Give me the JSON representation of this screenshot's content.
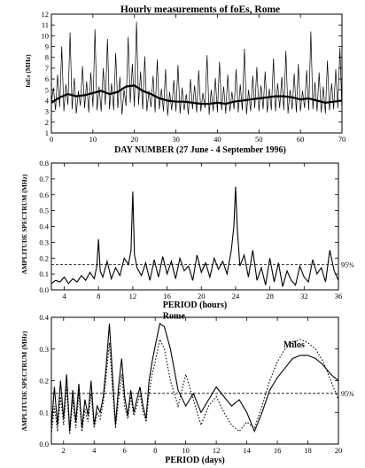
{
  "chart_data": [
    {
      "type": "line",
      "title": "Hourly measurements of foEs,  Rome",
      "xlabel": "DAY  NUMBER  (27 June - 4 September 1996)",
      "ylabel": "foEs  (MHz)",
      "xlim": [
        0,
        70
      ],
      "ylim": [
        1,
        12
      ],
      "xticks": [
        0,
        10,
        20,
        30,
        40,
        50,
        60,
        70
      ],
      "yticks": [
        1,
        2,
        3,
        4,
        5,
        6,
        7,
        8,
        9,
        10,
        11,
        12
      ],
      "series": [
        {
          "style": "hourly",
          "x": [
            0.0,
            0.5,
            1.0,
            1.5,
            2.0,
            2.5,
            3.0,
            3.5,
            4.0,
            4.5,
            5.0,
            5.5,
            6.0,
            6.5,
            7.0,
            7.5,
            8.0,
            8.5,
            9.0,
            9.5,
            10.0,
            10.5,
            11.0,
            11.5,
            12.0,
            12.5,
            13.0,
            13.5,
            14.0,
            14.5,
            15.0,
            15.5,
            16.0,
            16.5,
            17.0,
            17.5,
            18.0,
            18.5,
            19.0,
            19.5,
            20.0,
            20.5,
            21.0,
            21.5,
            22.0,
            22.5,
            23.0,
            23.5,
            24.0,
            24.5,
            25.0,
            25.5,
            26.0,
            26.5,
            27.0,
            27.5,
            28.0,
            28.5,
            29.0,
            29.5,
            30.0,
            30.5,
            31.0,
            31.5,
            32.0,
            32.5,
            33.0,
            33.5,
            34.0,
            34.5,
            35.0,
            35.5,
            36.0,
            36.5,
            37.0,
            37.5,
            38.0,
            38.5,
            39.0,
            39.5,
            40.0,
            40.5,
            41.0,
            41.5,
            42.0,
            42.5,
            43.0,
            43.5,
            44.0,
            44.5,
            45.0,
            45.5,
            46.0,
            46.5,
            47.0,
            47.5,
            48.0,
            48.5,
            49.0,
            49.5,
            50.0,
            50.5,
            51.0,
            51.5,
            52.0,
            52.5,
            53.0,
            53.5,
            54.0,
            54.5,
            55.0,
            55.5,
            56.0,
            56.5,
            57.0,
            57.5,
            58.0,
            58.5,
            59.0,
            59.5,
            60.0,
            60.5,
            61.0,
            61.5,
            62.0,
            62.5,
            63.0,
            63.5,
            64.0,
            64.5,
            65.0,
            65.5,
            66.0,
            66.5,
            67.0,
            67.5,
            68.0,
            68.5,
            69.0,
            69.5,
            70.0
          ],
          "y": [
            3.8,
            5.2,
            3.1,
            6.4,
            3.4,
            9.0,
            3.0,
            5.5,
            3.6,
            10.3,
            3.2,
            6.1,
            2.8,
            4.9,
            3.5,
            7.2,
            3.3,
            5.8,
            2.9,
            6.6,
            3.4,
            10.6,
            3.1,
            5.3,
            3.0,
            7.0,
            3.6,
            9.7,
            3.2,
            5.6,
            3.1,
            8.4,
            3.3,
            6.2,
            2.7,
            5.0,
            3.5,
            9.9,
            3.8,
            7.4,
            3.4,
            11.3,
            3.6,
            6.7,
            3.2,
            8.1,
            3.0,
            4.9,
            3.4,
            6.3,
            2.9,
            7.8,
            3.2,
            5.1,
            3.0,
            6.9,
            2.6,
            4.8,
            3.1,
            5.9,
            3.0,
            7.3,
            2.8,
            5.2,
            3.1,
            4.6,
            2.7,
            6.0,
            3.2,
            5.4,
            2.9,
            6.8,
            3.0,
            4.7,
            3.3,
            8.2,
            2.7,
            5.0,
            3.0,
            6.1,
            2.9,
            7.6,
            3.1,
            5.3,
            2.8,
            6.4,
            3.0,
            4.8,
            3.2,
            6.9,
            2.9,
            5.5,
            3.1,
            8.8,
            2.7,
            5.0,
            3.0,
            6.3,
            3.3,
            7.1,
            3.0,
            5.4,
            3.2,
            6.7,
            2.9,
            5.1,
            3.1,
            7.9,
            3.0,
            5.6,
            3.3,
            6.2,
            3.1,
            8.6,
            2.8,
            5.0,
            3.2,
            6.5,
            2.9,
            7.4,
            3.0,
            4.9,
            3.3,
            6.8,
            3.1,
            10.4,
            3.2,
            5.7,
            3.0,
            6.6,
            2.9,
            5.3,
            2.8,
            7.7,
            3.1,
            5.6,
            3.2,
            6.9,
            3.3,
            8.9,
            3.0
          ]
        },
        {
          "style": "smoothed",
          "x": [
            0,
            2,
            4,
            6,
            8,
            10,
            12,
            14,
            16,
            18,
            20,
            22,
            24,
            26,
            28,
            30,
            32,
            34,
            36,
            38,
            40,
            42,
            44,
            46,
            48,
            50,
            52,
            54,
            56,
            58,
            60,
            62,
            64,
            66,
            68,
            70
          ],
          "y": [
            3.8,
            4.3,
            4.6,
            4.4,
            4.5,
            4.7,
            4.9,
            4.6,
            4.8,
            5.3,
            5.4,
            4.9,
            4.6,
            4.2,
            4.0,
            3.9,
            3.9,
            3.8,
            3.7,
            3.7,
            3.8,
            3.7,
            3.9,
            4.0,
            4.1,
            4.2,
            4.3,
            4.4,
            4.4,
            4.3,
            4.1,
            4.2,
            4.0,
            3.8,
            3.9,
            4.0
          ]
        }
      ]
    },
    {
      "type": "line",
      "xlabel": "PERIOD  (hours)",
      "ylabel": "AMPLITUDE  SPECTRUM  (MHz)",
      "xlim": [
        2.5,
        36
      ],
      "ylim": [
        0,
        0.8
      ],
      "xticks": [
        4,
        8,
        12,
        16,
        20,
        24,
        28,
        32,
        36
      ],
      "yticks": [
        0.0,
        0.1,
        0.2,
        0.3,
        0.4,
        0.5,
        0.6,
        0.7,
        0.8
      ],
      "significance": {
        "value": 0.16,
        "label": "95%"
      },
      "series": [
        {
          "x": [
            2.5,
            3.0,
            3.5,
            4.0,
            4.5,
            5.0,
            5.5,
            6.0,
            6.5,
            7.0,
            7.5,
            7.8,
            8.0,
            8.2,
            8.5,
            9.0,
            9.5,
            10.0,
            10.5,
            11.0,
            11.5,
            11.8,
            12.0,
            12.2,
            12.5,
            13.0,
            13.5,
            14.0,
            14.5,
            15.0,
            15.5,
            16.0,
            16.5,
            17.0,
            17.5,
            18.0,
            18.5,
            19.0,
            19.5,
            20.0,
            20.5,
            21.0,
            21.5,
            22.0,
            22.5,
            23.0,
            23.5,
            23.8,
            24.0,
            24.2,
            24.5,
            25.0,
            25.5,
            26.0,
            26.5,
            27.0,
            27.5,
            28.0,
            28.5,
            29.0,
            29.5,
            30.0,
            30.5,
            31.0,
            31.5,
            32.0,
            32.5,
            33.0,
            33.5,
            34.0,
            34.5,
            35.0,
            35.5,
            36.0
          ],
          "y": [
            0.04,
            0.06,
            0.05,
            0.08,
            0.04,
            0.07,
            0.05,
            0.09,
            0.06,
            0.11,
            0.07,
            0.15,
            0.32,
            0.12,
            0.08,
            0.18,
            0.07,
            0.14,
            0.09,
            0.2,
            0.16,
            0.25,
            0.62,
            0.22,
            0.14,
            0.09,
            0.17,
            0.06,
            0.19,
            0.08,
            0.21,
            0.1,
            0.18,
            0.07,
            0.2,
            0.12,
            0.15,
            0.06,
            0.22,
            0.11,
            0.17,
            0.08,
            0.2,
            0.13,
            0.18,
            0.1,
            0.25,
            0.4,
            0.65,
            0.38,
            0.15,
            0.22,
            0.08,
            0.25,
            0.06,
            0.14,
            0.03,
            0.2,
            0.05,
            0.17,
            0.02,
            0.12,
            0.06,
            0.03,
            0.15,
            0.08,
            0.05,
            0.19,
            0.1,
            0.14,
            0.05,
            0.25,
            0.12,
            0.06
          ]
        }
      ]
    },
    {
      "type": "line",
      "xlabel": "PERIOD  (days)",
      "ylabel": "AMPLITUDE  SPECTRUM  (MHz)",
      "xlim": [
        1.2,
        20
      ],
      "ylim": [
        0,
        0.4
      ],
      "xticks": [
        2,
        4,
        6,
        8,
        10,
        12,
        14,
        16,
        18,
        20
      ],
      "yticks": [
        0.0,
        0.1,
        0.2,
        0.3,
        0.4
      ],
      "significance": {
        "value": 0.16,
        "label": "95%"
      },
      "annotations": [
        "Rome",
        "Milos"
      ],
      "series": [
        {
          "name": "Rome",
          "style": "solid",
          "x": [
            1.2,
            1.4,
            1.6,
            1.8,
            2.0,
            2.2,
            2.4,
            2.6,
            2.8,
            3.0,
            3.2,
            3.4,
            3.6,
            3.8,
            4.0,
            4.2,
            4.4,
            4.6,
            4.8,
            5.0,
            5.2,
            5.4,
            5.6,
            5.8,
            6.0,
            6.2,
            6.4,
            6.6,
            6.8,
            7.0,
            7.2,
            7.4,
            7.6,
            7.8,
            8.0,
            8.3,
            8.6,
            9.0,
            9.5,
            10.0,
            10.5,
            11.0,
            11.5,
            12.0,
            12.5,
            13.0,
            13.5,
            14.0,
            14.5,
            15.0,
            15.5,
            16.0,
            16.5,
            17.0,
            17.5,
            18.0,
            18.5,
            19.0,
            19.5,
            20.0
          ],
          "y": [
            0.05,
            0.18,
            0.06,
            0.2,
            0.08,
            0.22,
            0.04,
            0.17,
            0.07,
            0.19,
            0.05,
            0.14,
            0.09,
            0.2,
            0.06,
            0.12,
            0.1,
            0.15,
            0.25,
            0.38,
            0.22,
            0.06,
            0.18,
            0.27,
            0.15,
            0.09,
            0.17,
            0.1,
            0.14,
            0.18,
            0.12,
            0.08,
            0.2,
            0.26,
            0.31,
            0.38,
            0.37,
            0.3,
            0.17,
            0.12,
            0.16,
            0.1,
            0.14,
            0.18,
            0.15,
            0.12,
            0.14,
            0.1,
            0.04,
            0.1,
            0.17,
            0.21,
            0.24,
            0.27,
            0.28,
            0.28,
            0.27,
            0.25,
            0.22,
            0.2
          ]
        },
        {
          "name": "Milos",
          "style": "dotted",
          "x": [
            1.2,
            1.4,
            1.6,
            1.8,
            2.0,
            2.2,
            2.4,
            2.6,
            2.8,
            3.0,
            3.2,
            3.4,
            3.6,
            3.8,
            4.0,
            4.2,
            4.4,
            4.6,
            4.8,
            5.0,
            5.2,
            5.4,
            5.6,
            5.8,
            6.0,
            6.2,
            6.4,
            6.6,
            6.8,
            7.0,
            7.2,
            7.4,
            7.6,
            7.8,
            8.0,
            8.3,
            8.6,
            9.0,
            9.5,
            10.0,
            10.5,
            11.0,
            11.5,
            12.0,
            12.5,
            13.0,
            13.5,
            14.0,
            14.5,
            15.0,
            15.5,
            16.0,
            16.5,
            17.0,
            17.5,
            18.0,
            18.5,
            19.0,
            19.5,
            20.0
          ],
          "y": [
            0.03,
            0.12,
            0.04,
            0.15,
            0.06,
            0.18,
            0.03,
            0.14,
            0.05,
            0.16,
            0.04,
            0.11,
            0.07,
            0.16,
            0.05,
            0.1,
            0.08,
            0.13,
            0.22,
            0.32,
            0.18,
            0.05,
            0.14,
            0.22,
            0.12,
            0.08,
            0.15,
            0.09,
            0.12,
            0.16,
            0.1,
            0.07,
            0.16,
            0.22,
            0.26,
            0.33,
            0.3,
            0.2,
            0.12,
            0.22,
            0.14,
            0.06,
            0.12,
            0.15,
            0.1,
            0.06,
            0.04,
            0.07,
            0.05,
            0.12,
            0.2,
            0.26,
            0.3,
            0.32,
            0.33,
            0.32,
            0.3,
            0.26,
            0.2,
            0.14
          ]
        }
      ]
    }
  ]
}
